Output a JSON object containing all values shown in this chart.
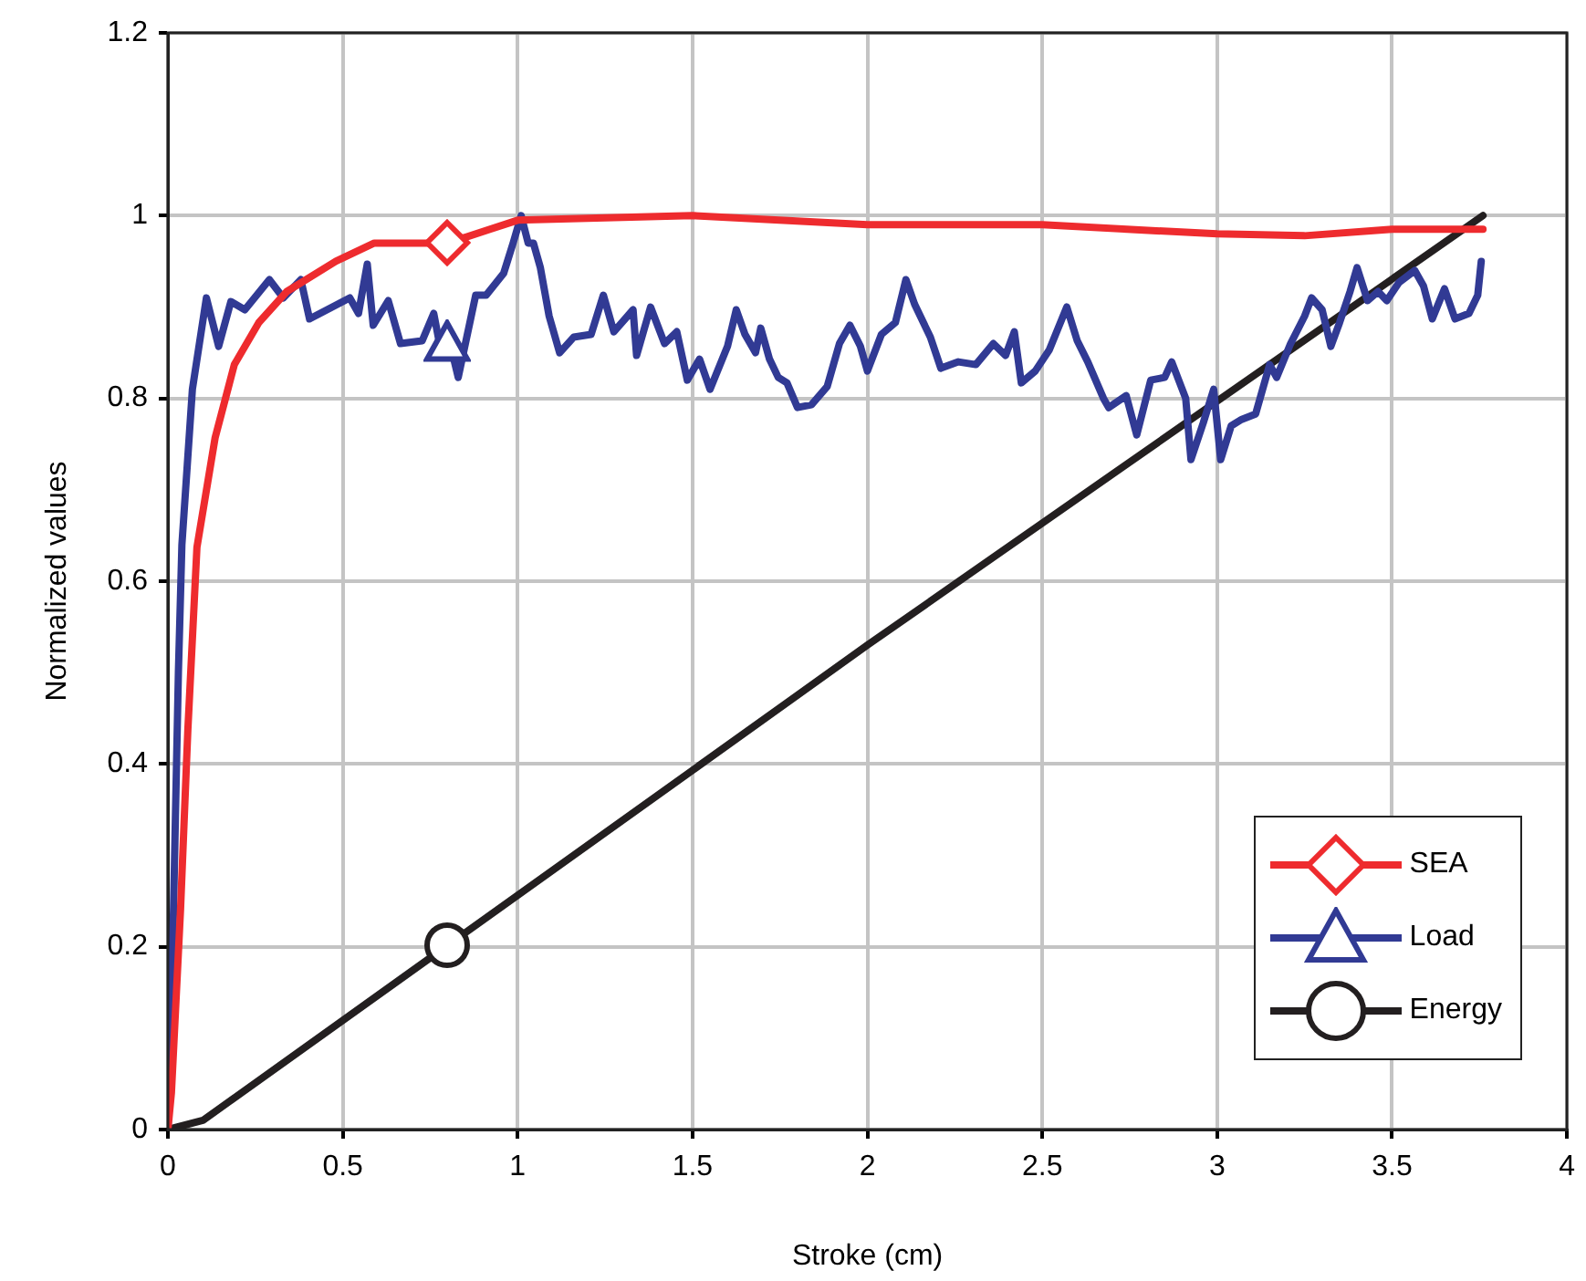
{
  "chart_data": {
    "type": "line",
    "xlabel": "Stroke (cm)",
    "ylabel": "Normalized values",
    "xlim": [
      0,
      4
    ],
    "ylim": [
      0,
      1.2
    ],
    "xticks": [
      0,
      0.5,
      1,
      1.5,
      2,
      2.5,
      3,
      3.5,
      4
    ],
    "yticks": [
      0,
      0.2,
      0.4,
      0.6,
      0.8,
      1,
      1.2
    ],
    "grid": true,
    "legend": "bottom right",
    "line_style": "solid",
    "series": [
      {
        "name": "SEA",
        "color": "#ee2b2e",
        "x": [
          0,
          0.01,
          0.036,
          0.057,
          0.083,
          0.135,
          0.19,
          0.26,
          0.34,
          0.48,
          0.59,
          0.8,
          1.0,
          1.5,
          2.0,
          2.5,
          3.0,
          3.25,
          3.5,
          3.76
        ],
        "values": [
          0,
          0.04,
          0.24,
          0.437,
          0.637,
          0.757,
          0.837,
          0.883,
          0.917,
          0.95,
          0.97,
          0.97,
          0.995,
          1.0,
          0.99,
          0.99,
          0.98,
          0.978,
          0.985,
          0.985
        ]
      },
      {
        "name": "Load",
        "color": "#313a94",
        "x": [
          0,
          0.016,
          0.03,
          0.04,
          0.07,
          0.11,
          0.145,
          0.18,
          0.22,
          0.29,
          0.33,
          0.38,
          0.405,
          0.47,
          0.52,
          0.545,
          0.57,
          0.587,
          0.63,
          0.665,
          0.727,
          0.76,
          0.78,
          0.805,
          0.83,
          0.88,
          0.91,
          0.96,
          0.987,
          1.01,
          1.03,
          1.045,
          1.065,
          1.09,
          1.12,
          1.16,
          1.21,
          1.245,
          1.275,
          1.33,
          1.34,
          1.38,
          1.42,
          1.455,
          1.485,
          1.52,
          1.55,
          1.6,
          1.625,
          1.65,
          1.68,
          1.695,
          1.72,
          1.745,
          1.77,
          1.8,
          1.84,
          1.885,
          1.92,
          1.95,
          1.98,
          2.0,
          2.04,
          2.08,
          2.11,
          2.135,
          2.18,
          2.21,
          2.26,
          2.31,
          2.36,
          2.395,
          2.42,
          2.44,
          2.48,
          2.52,
          2.57,
          2.6,
          2.63,
          2.675,
          2.69,
          2.74,
          2.77,
          2.81,
          2.85,
          2.87,
          2.91,
          2.925,
          2.96,
          2.99,
          3.01,
          3.04,
          3.07,
          3.11,
          3.15,
          3.17,
          3.21,
          3.25,
          3.27,
          3.3,
          3.325,
          3.35,
          3.38,
          3.4,
          3.43,
          3.46,
          3.485,
          3.52,
          3.565,
          3.59,
          3.615,
          3.65,
          3.68,
          3.72,
          3.745,
          3.755
        ],
        "values": [
          0,
          0.24,
          0.5,
          0.64,
          0.81,
          0.91,
          0.857,
          0.906,
          0.897,
          0.93,
          0.91,
          0.93,
          0.887,
          0.9,
          0.91,
          0.893,
          0.947,
          0.88,
          0.907,
          0.86,
          0.863,
          0.893,
          0.853,
          0.863,
          0.823,
          0.913,
          0.913,
          0.937,
          0.97,
          1.0,
          0.97,
          0.97,
          0.943,
          0.89,
          0.85,
          0.867,
          0.87,
          0.913,
          0.873,
          0.897,
          0.847,
          0.9,
          0.86,
          0.873,
          0.82,
          0.843,
          0.81,
          0.857,
          0.897,
          0.87,
          0.85,
          0.877,
          0.843,
          0.823,
          0.817,
          0.79,
          0.793,
          0.813,
          0.86,
          0.88,
          0.857,
          0.83,
          0.87,
          0.883,
          0.93,
          0.903,
          0.867,
          0.833,
          0.84,
          0.837,
          0.86,
          0.847,
          0.873,
          0.817,
          0.83,
          0.853,
          0.9,
          0.863,
          0.84,
          0.8,
          0.79,
          0.803,
          0.76,
          0.82,
          0.823,
          0.84,
          0.8,
          0.733,
          0.773,
          0.81,
          0.733,
          0.77,
          0.777,
          0.783,
          0.837,
          0.823,
          0.86,
          0.89,
          0.91,
          0.897,
          0.857,
          0.883,
          0.917,
          0.943,
          0.907,
          0.917,
          0.907,
          0.927,
          0.94,
          0.923,
          0.887,
          0.92,
          0.887,
          0.893,
          0.913,
          0.95
        ]
      },
      {
        "name": "Energy",
        "color": "#231f20",
        "x": [
          0,
          0.1,
          2.0,
          3.76
        ],
        "values": [
          0,
          0.01,
          0.53,
          1.0
        ]
      }
    ]
  }
}
